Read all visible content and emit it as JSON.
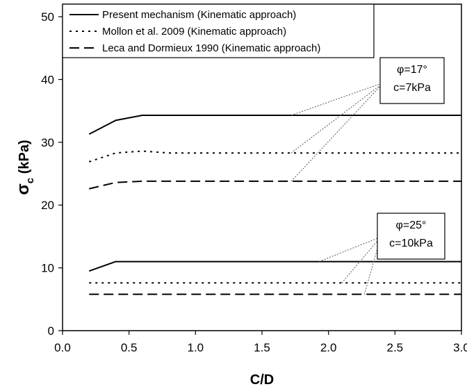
{
  "chart_data": {
    "type": "line",
    "xlabel": "C/D",
    "ylabel_main": "σ",
    "ylabel_sub": "c",
    "ylabel_tail": " (kPa)",
    "xlim": [
      0.0,
      3.0
    ],
    "ylim": [
      0,
      52
    ],
    "xticks": [
      0.0,
      0.5,
      1.0,
      1.5,
      2.0,
      2.5,
      3.0
    ],
    "xtick_labels": [
      "0.0",
      "0.5",
      "1.0",
      "1.5",
      "2.0",
      "2.5",
      "3.0"
    ],
    "yticks": [
      0,
      10,
      20,
      30,
      40,
      50
    ],
    "ytick_labels": [
      "0",
      "10",
      "20",
      "30",
      "40",
      "50"
    ],
    "grid": false,
    "legend_position": "top",
    "legend": [
      {
        "label": "Present mechanism (Kinematic approach)",
        "style": "solid"
      },
      {
        "label": "Mollon et al. 2009 (Kinematic approach)",
        "style": "dotted"
      },
      {
        "label": "Leca and Dormieux 1990 (Kinematic approach)",
        "style": "dashed"
      }
    ],
    "groups": [
      {
        "annotation": [
          "φ=17°",
          "c=7kPa"
        ],
        "series": [
          {
            "style": "solid",
            "x": [
              0.2,
              0.4,
              0.6,
              3.0
            ],
            "y": [
              31.3,
              33.5,
              34.3,
              34.3
            ]
          },
          {
            "style": "dotted",
            "x": [
              0.2,
              0.4,
              0.6,
              0.8,
              3.0
            ],
            "y": [
              26.9,
              28.3,
              28.6,
              28.3,
              28.3
            ]
          },
          {
            "style": "dashed",
            "x": [
              0.2,
              0.4,
              0.6,
              3.0
            ],
            "y": [
              22.6,
              23.6,
              23.8,
              23.8
            ]
          }
        ]
      },
      {
        "annotation": [
          "φ=25°",
          "c=10kPa"
        ],
        "series": [
          {
            "style": "solid",
            "x": [
              0.2,
              0.4,
              3.0
            ],
            "y": [
              9.5,
              11.0,
              11.0
            ]
          },
          {
            "style": "dotted",
            "x": [
              0.2,
              3.0
            ],
            "y": [
              7.6,
              7.6
            ]
          },
          {
            "style": "dashed",
            "x": [
              0.2,
              3.0
            ],
            "y": [
              5.8,
              5.8
            ]
          }
        ]
      }
    ]
  }
}
